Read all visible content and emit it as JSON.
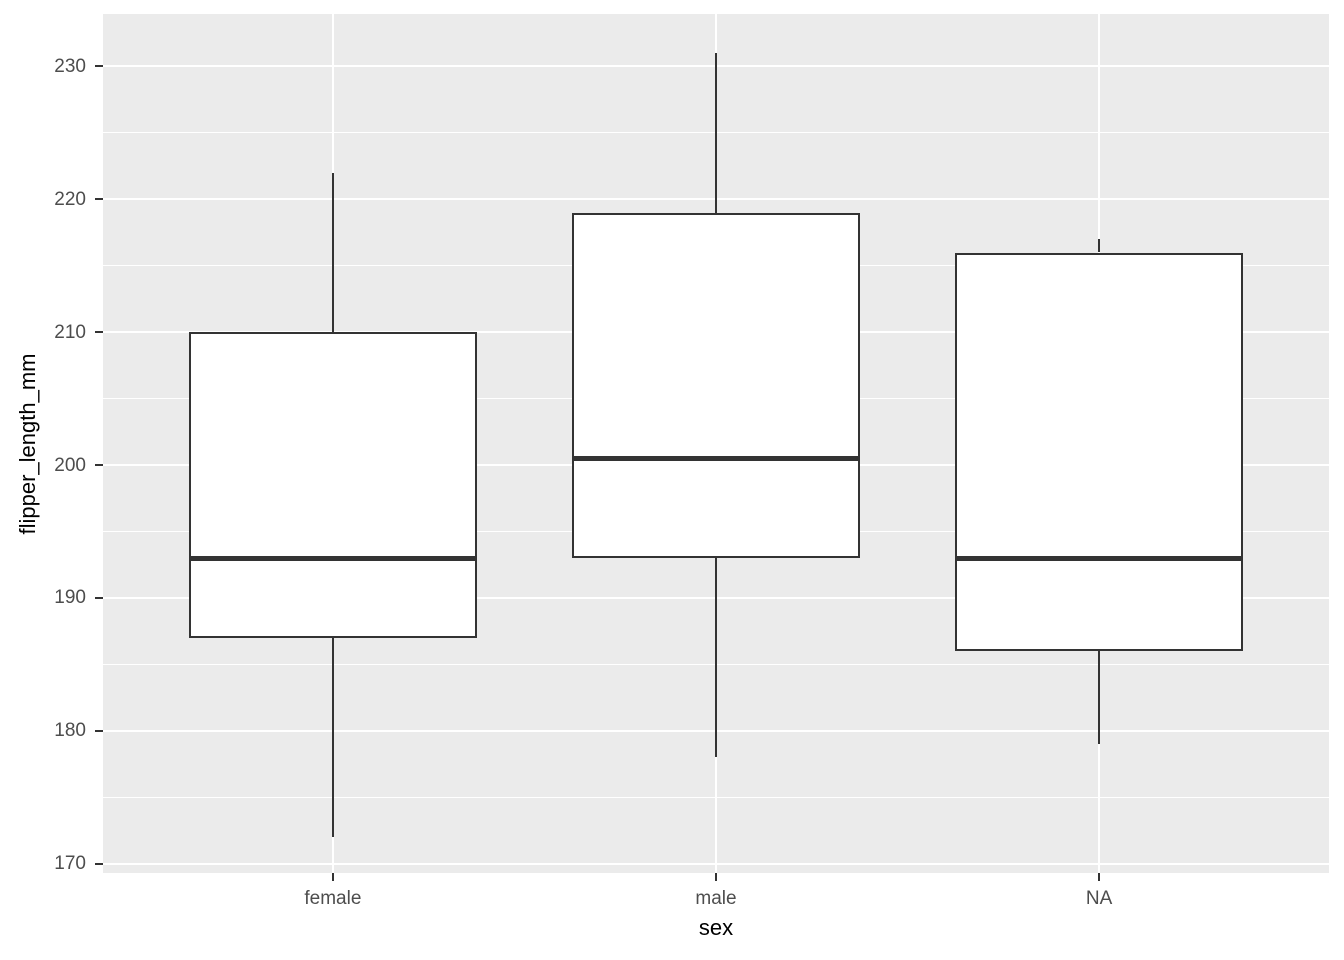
{
  "chart_data": {
    "type": "boxplot",
    "title": "",
    "xlabel": "sex",
    "ylabel": "flipper_length_mm",
    "categories": [
      "female",
      "male",
      "NA"
    ],
    "series": [
      {
        "name": "female",
        "min": 172,
        "q1": 187,
        "median": 193,
        "q3": 210,
        "max": 222,
        "outliers": []
      },
      {
        "name": "male",
        "min": 178,
        "q1": 193,
        "median": 200.5,
        "q3": 219,
        "max": 231,
        "outliers": []
      },
      {
        "name": "NA",
        "min": 179,
        "q1": 186,
        "median": 193,
        "q3": 216,
        "max": 217,
        "outliers": []
      }
    ],
    "y_ticks": [
      170,
      180,
      190,
      200,
      210,
      220,
      230
    ],
    "y_minor_ticks": [
      175,
      185,
      195,
      205,
      215,
      225
    ],
    "ylim": [
      169.3,
      233.95
    ],
    "x_positions": [
      1,
      2,
      3
    ],
    "xlim": [
      0.4,
      3.6
    ],
    "box_width_units": 0.75,
    "grid": true,
    "legend": false
  },
  "style": {
    "panel_background": "#EBEBEB",
    "gridline_color": "#FFFFFF",
    "box_border_color": "#333333",
    "box_fill_color": "#FFFFFF",
    "median_color": "#333333",
    "whisker_color": "#333333",
    "tick_mark_color": "#333333",
    "tick_label_color": "#4D4D4D",
    "axis_title_color": "#000000",
    "outer_background": "#FFFFFF"
  }
}
